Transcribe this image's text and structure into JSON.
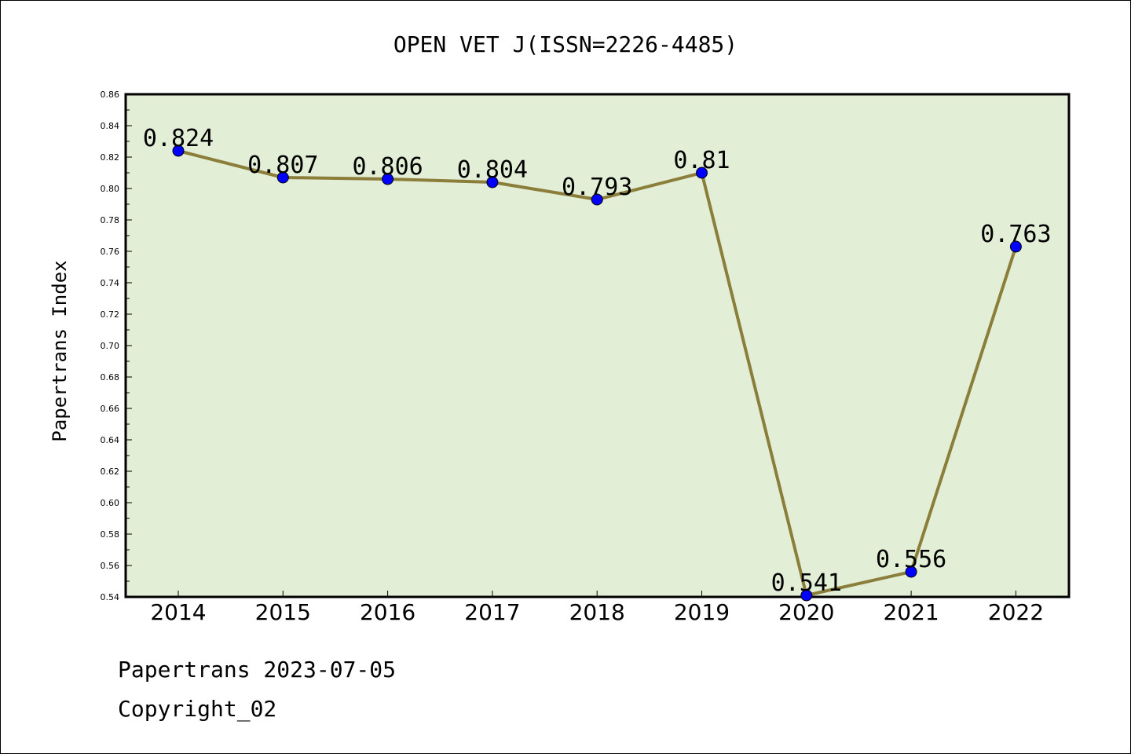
{
  "chart_data": {
    "type": "line",
    "title": "OPEN VET J(ISSN=2226-4485)",
    "xlabel": "",
    "ylabel": "Papertrans Index",
    "categories": [
      "2014",
      "2015",
      "2016",
      "2017",
      "2018",
      "2019",
      "2020",
      "2021",
      "2022"
    ],
    "series": [
      {
        "values": [
          0.824,
          0.807,
          0.806,
          0.804,
          0.793,
          0.81,
          0.541,
          0.556,
          0.763
        ],
        "labels": [
          "0.824",
          "0.807",
          "0.806",
          "0.804",
          "0.793",
          "0.81",
          "0.541",
          "0.556",
          "0.763"
        ]
      }
    ],
    "ylim": [
      0.54,
      0.86
    ],
    "yticks": [
      "0.54",
      "0.56",
      "0.58",
      "0.60",
      "0.62",
      "0.64",
      "0.66",
      "0.68",
      "0.70",
      "0.72",
      "0.74",
      "0.76",
      "0.78",
      "0.80",
      "0.82",
      "0.84",
      "0.86"
    ],
    "grid": false,
    "legend": "none",
    "colors": {
      "plot_background": "#e2efd6",
      "line": "#8b7d3a",
      "marker": "#0000ff"
    }
  },
  "footer": {
    "date_line": "Papertrans 2023-07-05",
    "copyright": "Copyright_02"
  }
}
